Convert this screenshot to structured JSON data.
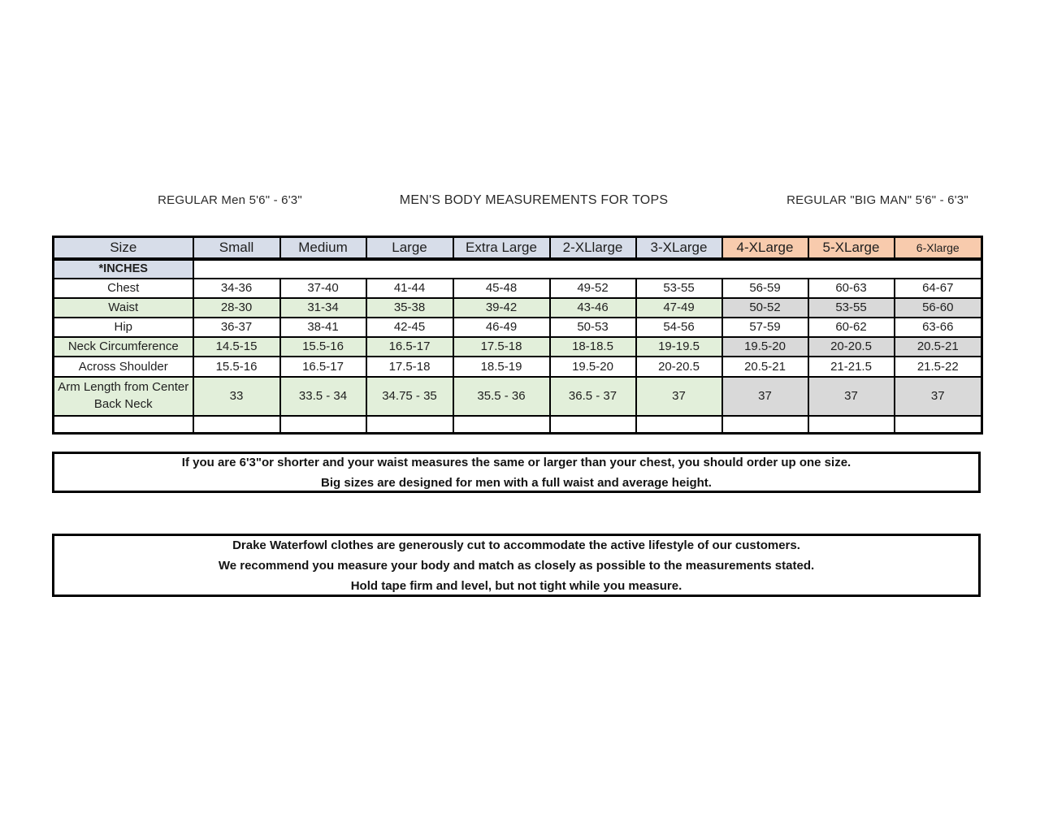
{
  "titles": {
    "left": "REGULAR Men 5'6\" - 6'3\"",
    "center": "MEN'S BODY MEASUREMENTS FOR TOPS",
    "right": "REGULAR \"BIG MAN\" 5'6\" - 6'3\""
  },
  "colors": {
    "header_blue": "#d7dde9",
    "header_orange": "#f8cbad",
    "row_green": "#e2efda",
    "big_man_gray": "#d9d9d9",
    "border": "#000000",
    "text": "#1f1f1f"
  },
  "table": {
    "columns": [
      {
        "key": "size",
        "label": "Size",
        "group": "label"
      },
      {
        "key": "small",
        "label": "Small",
        "group": "regular"
      },
      {
        "key": "medium",
        "label": "Medium",
        "group": "regular"
      },
      {
        "key": "large",
        "label": "Large",
        "group": "regular"
      },
      {
        "key": "extra-large",
        "label": "Extra Large",
        "group": "regular"
      },
      {
        "key": "2-xlarge",
        "label": "2-XLlarge",
        "group": "regular"
      },
      {
        "key": "3-xlarge",
        "label": "3-XLarge",
        "group": "regular"
      },
      {
        "key": "4-xlarge",
        "label": "4-XLarge",
        "group": "big-man"
      },
      {
        "key": "5-xlarge",
        "label": "5-XLarge",
        "group": "big-man"
      },
      {
        "key": "6-xlarge",
        "label": "6-Xlarge",
        "group": "big-man"
      }
    ],
    "units_row_label": "*INCHES",
    "rows": [
      {
        "key": "chest",
        "label": "Chest",
        "shade": "white",
        "values": [
          "34-36",
          "37-40",
          "41-44",
          "45-48",
          "49-52",
          "53-55",
          "56-59",
          "60-63",
          "64-67"
        ]
      },
      {
        "key": "waist",
        "label": "Waist",
        "shade": "green",
        "values": [
          "28-30",
          "31-34",
          "35-38",
          "39-42",
          "43-46",
          "47-49",
          "50-52",
          "53-55",
          "56-60"
        ]
      },
      {
        "key": "hip",
        "label": "Hip",
        "shade": "white",
        "values": [
          "36-37",
          "38-41",
          "42-45",
          "46-49",
          "50-53",
          "54-56",
          "57-59",
          "60-62",
          "63-66"
        ]
      },
      {
        "key": "neck",
        "label": "Neck Circumference",
        "shade": "green",
        "values": [
          "14.5-15",
          "15.5-16",
          "16.5-17",
          "17.5-18",
          "18-18.5",
          "19-19.5",
          "19.5-20",
          "20-20.5",
          "20.5-21"
        ]
      },
      {
        "key": "shoulder",
        "label": "Across Shoulder",
        "shade": "white",
        "values": [
          "15.5-16",
          "16.5-17",
          "17.5-18",
          "18.5-19",
          "19.5-20",
          "20-20.5",
          "20.5-21",
          "21-21.5",
          "21.5-22"
        ]
      },
      {
        "key": "arm-length",
        "label": "Arm Length from Center Back Neck",
        "shade": "green",
        "values": [
          "33",
          "33.5 - 34",
          "34.75 - 35",
          "35.5 - 36",
          "36.5 - 37",
          "37",
          "37",
          "37",
          "37"
        ]
      },
      {
        "key": "empty",
        "label": "",
        "shade": "white",
        "values": [
          "",
          "",
          "",
          "",
          "",
          "",
          "",
          "",
          ""
        ]
      }
    ]
  },
  "notes": [
    {
      "lines": [
        "If you are 6'3\"or shorter and your waist measures the same or larger than your chest, you should order up one size.",
        "Big sizes are designed for men with a full waist and average height."
      ]
    },
    {
      "lines": [
        "Drake Waterfowl clothes are generously cut to accommodate the active lifestyle of our customers.",
        "We recommend you measure your body and match as closely as possible to the measurements stated.",
        "Hold tape firm and level, but not tight while you measure."
      ]
    }
  ]
}
